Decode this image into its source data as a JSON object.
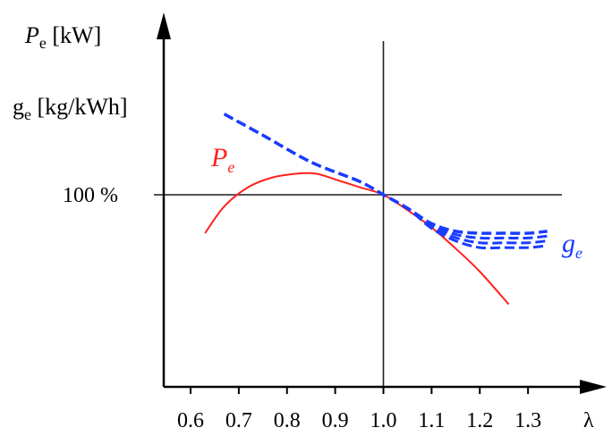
{
  "chart_data": {
    "type": "line",
    "title": "",
    "xlabel": "λ",
    "y_labels": [
      {
        "symbol": "P",
        "sub": "e",
        "unit": " [kW]"
      },
      {
        "symbol": "g",
        "sub": "e",
        "unit": " [kg/kWh]"
      }
    ],
    "xlim": [
      0.55,
      1.4
    ],
    "ylim": [
      0,
      150
    ],
    "x_ticks": [
      "0.6",
      "0.7",
      "0.8",
      "0.9",
      "1.0",
      "1.1",
      "1.2",
      "1.3"
    ],
    "reference_line": {
      "y": 100,
      "label": "100 %"
    },
    "vertical_line": {
      "x": 1.0
    },
    "series": [
      {
        "name": "P",
        "sub": "e",
        "color": "#ff2020",
        "style": "solid",
        "x": [
          0.63,
          0.67,
          0.72,
          0.77,
          0.82,
          0.86,
          0.9,
          0.95,
          1.0,
          1.05,
          1.1,
          1.15,
          1.2,
          1.26
        ],
        "y": [
          80,
          94,
          104,
          109,
          111,
          111,
          108,
          104,
          100,
          92,
          83,
          72,
          60,
          43
        ]
      },
      {
        "name": "g",
        "sub": "e",
        "color": "#1a3cff",
        "style": "dashed",
        "x": [
          0.67,
          0.75,
          0.85,
          0.95,
          1.0,
          1.05,
          1.1,
          1.15,
          1.2,
          1.25,
          1.3,
          1.34
        ],
        "y": [
          142,
          131,
          117,
          107,
          100,
          93,
          85,
          81,
          80,
          80,
          80,
          81
        ]
      }
    ],
    "g_band_offsets": [
      0,
      -2.5,
      -5,
      -7.5
    ],
    "band_start_x": 1.05
  }
}
